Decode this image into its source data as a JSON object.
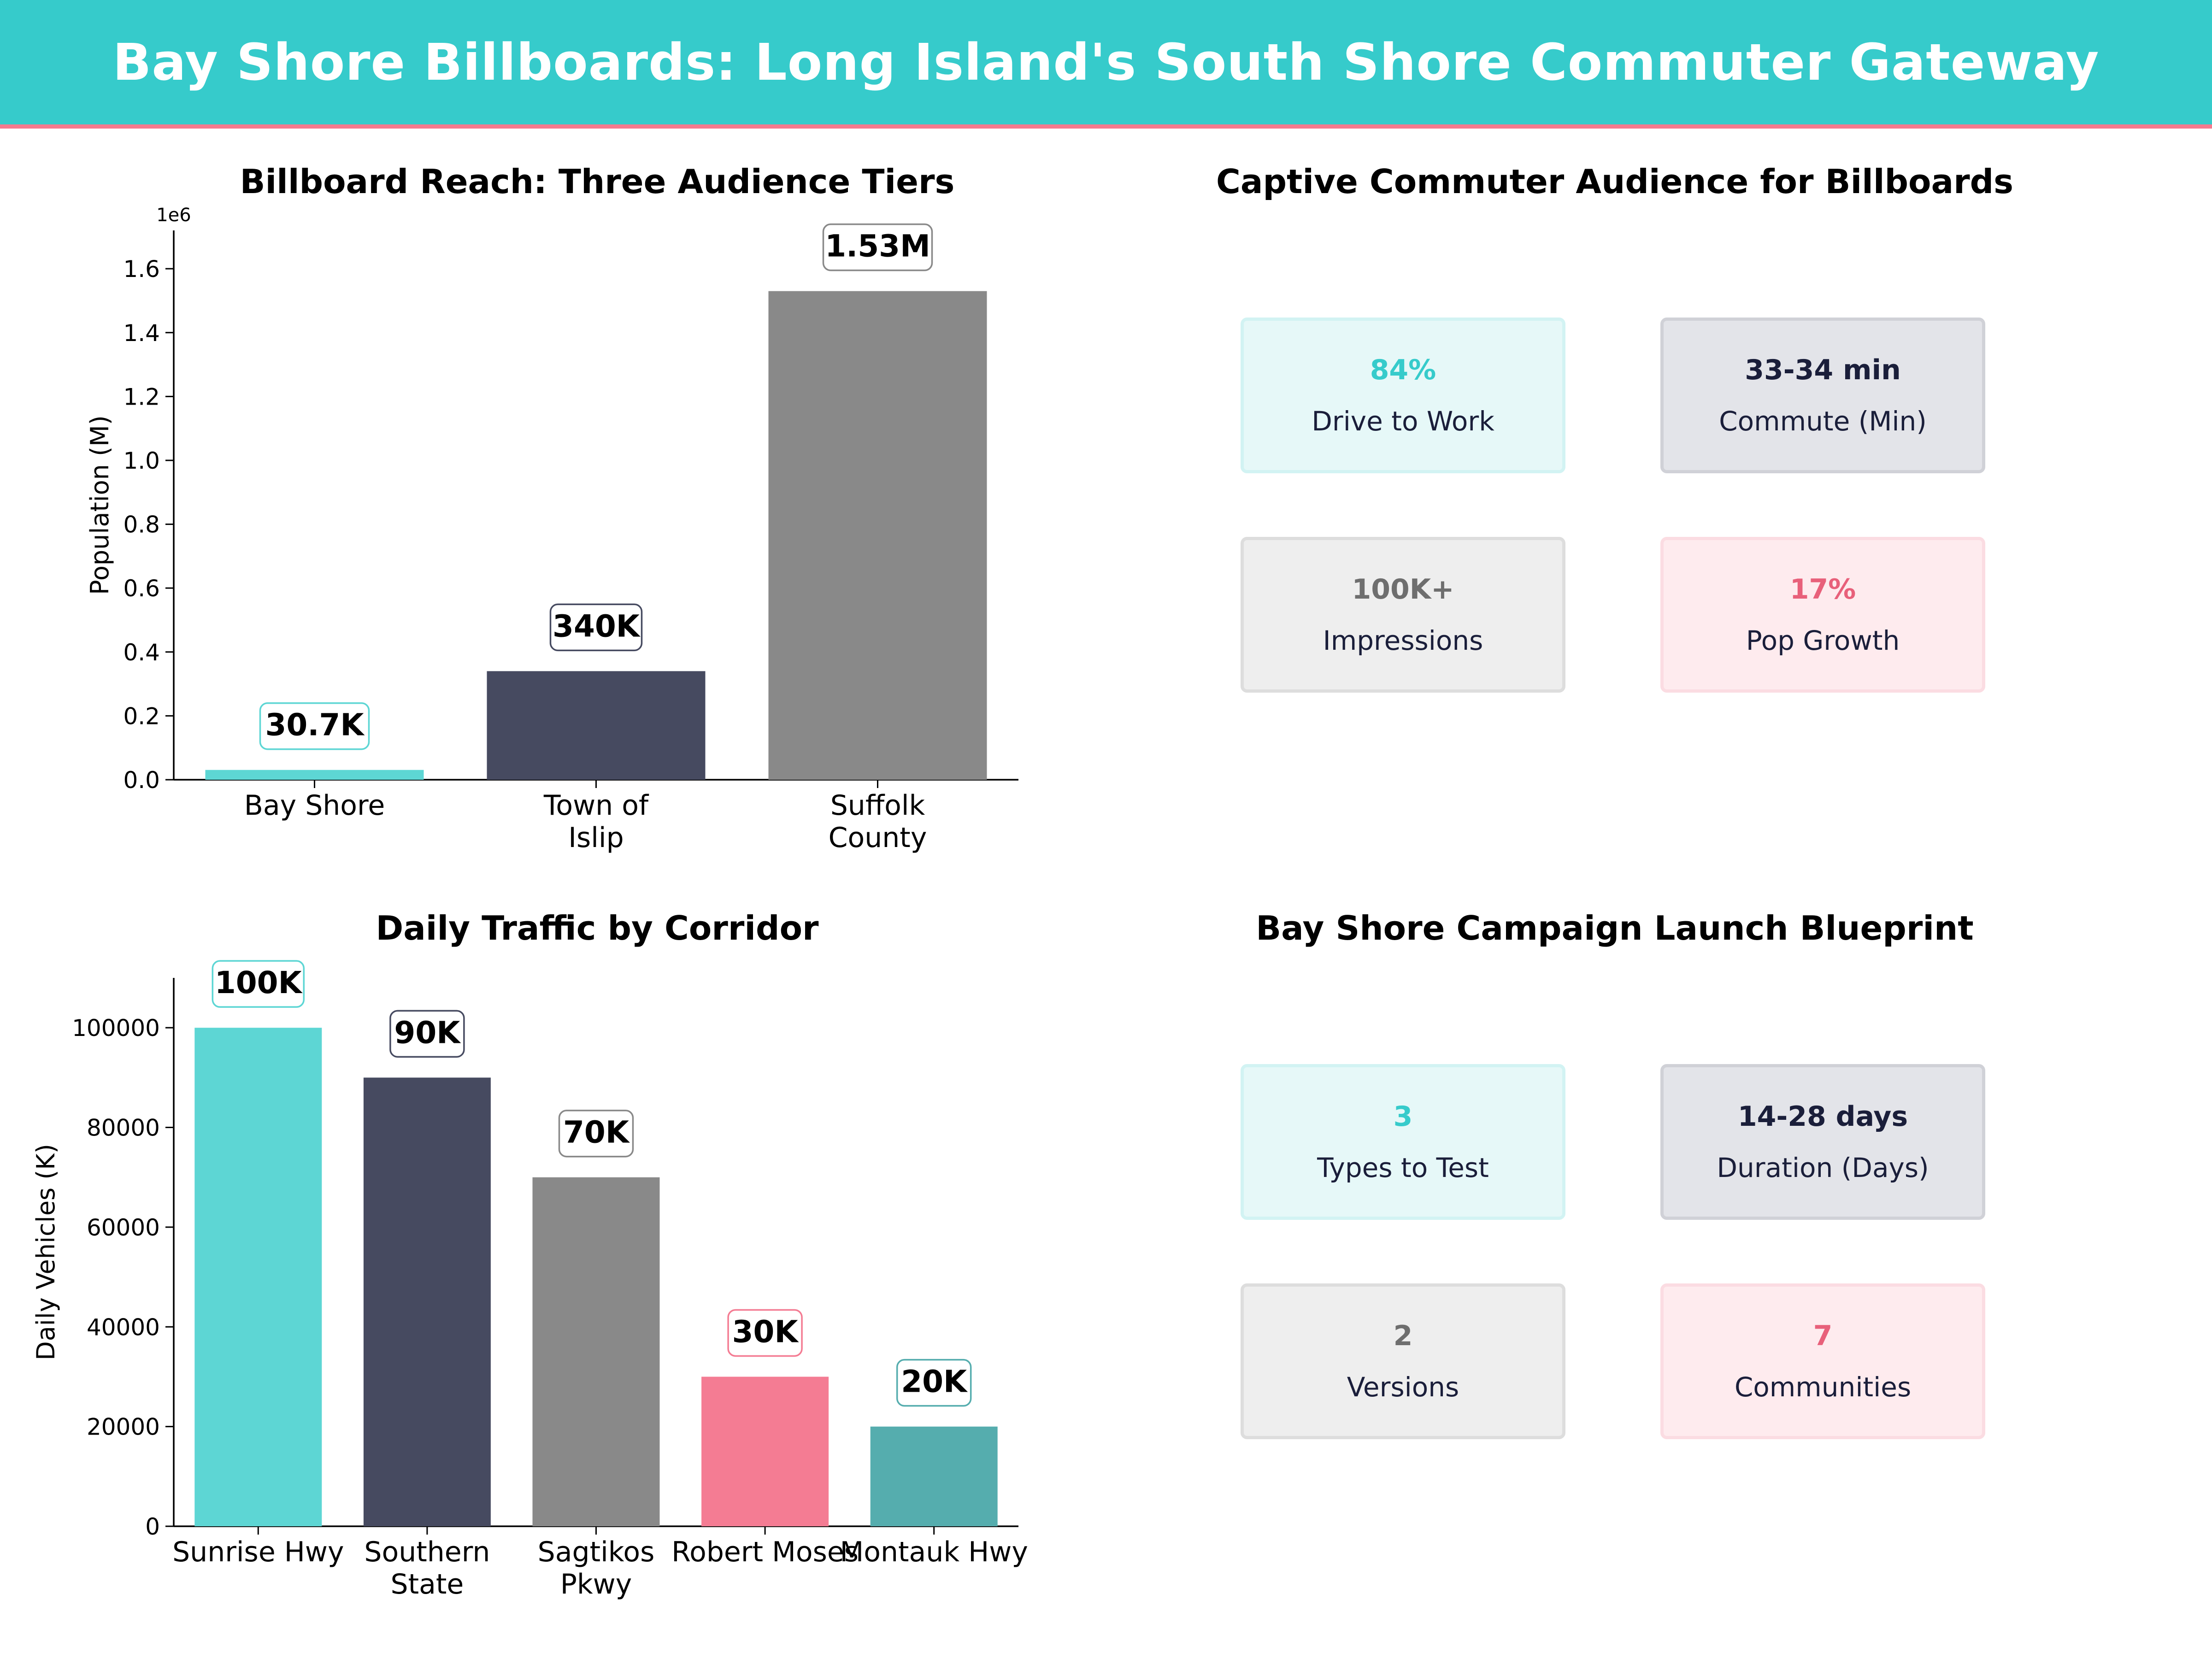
{
  "header": {
    "title": "Bay Shore Billboards: Long Island's South Shore Commuter Gateway"
  },
  "colors": {
    "banner": "#36cbcb",
    "banner_border": "#f47a8e",
    "teal": "#5dd6d4",
    "navy": "#464a60",
    "gray": "#898989",
    "pink": "#f47c93",
    "dark_teal": "#55adae"
  },
  "chart_data": [
    {
      "type": "bar",
      "title": "Billboard Reach: Three Audience Tiers",
      "ylabel": "Population (M)",
      "xlabel": "",
      "y_offset_label": "1e6",
      "categories": [
        "Bay Shore",
        "Town of\nIslip",
        "Suffolk\nCounty"
      ],
      "values": [
        30700,
        340000,
        1530000
      ],
      "data_labels": [
        "30.7K",
        "340K",
        "1.53M"
      ],
      "bar_colors": [
        "#5dd6d4",
        "#464a60",
        "#898989"
      ],
      "label_border_colors": [
        "#5dd6d4",
        "#464a60",
        "#898989"
      ],
      "ylim": [
        0,
        1720000
      ],
      "yticks": [
        0,
        200000,
        400000,
        600000,
        800000,
        1000000,
        1200000,
        1400000,
        1600000
      ],
      "ytick_labels": [
        "0.0",
        "0.2",
        "0.4",
        "0.6",
        "0.8",
        "1.0",
        "1.2",
        "1.4",
        "1.6"
      ],
      "grid": false,
      "legend": "none"
    },
    {
      "type": "bar",
      "title": "Daily Traffic by Corridor",
      "ylabel": "Daily Vehicles (K)",
      "xlabel": "",
      "categories": [
        "Sunrise Hwy",
        "Southern\nState",
        "Sagtikos\nPkwy",
        "Robert Moses",
        "Montauk Hwy"
      ],
      "values": [
        100000,
        90000,
        70000,
        30000,
        20000
      ],
      "data_labels": [
        "100K",
        "90K",
        "70K",
        "30K",
        "20K"
      ],
      "bar_colors": [
        "#5dd6d4",
        "#464a60",
        "#898989",
        "#f47c93",
        "#55adae"
      ],
      "label_border_colors": [
        "#5dd6d4",
        "#464a60",
        "#898989",
        "#f47c93",
        "#55adae"
      ],
      "ylim": [
        0,
        110000
      ],
      "yticks": [
        0,
        20000,
        40000,
        60000,
        80000,
        100000
      ],
      "ytick_labels": [
        "0",
        "20000",
        "40000",
        "60000",
        "80000",
        "100000"
      ],
      "grid": false,
      "legend": "none"
    }
  ],
  "audience_panel": {
    "title": "Captive Commuter Audience for Billboards",
    "cards": [
      {
        "value": "84%",
        "label": "Drive to Work",
        "value_color": "#36cbcb",
        "bg": "#e6f8f8",
        "border": "#d2f3f3"
      },
      {
        "value": "33-34 min",
        "label": "Commute (Min)",
        "value_color": "#1a1e3a",
        "bg": "#e3e4e9",
        "border": "#d0d1d7"
      },
      {
        "value": "100K+",
        "label": "Impressions",
        "value_color": "#6e6e6e",
        "bg": "#eeeeee",
        "border": "#dddddd"
      },
      {
        "value": "17%",
        "label": "Pop Growth",
        "value_color": "#e8607a",
        "bg": "#feebee",
        "border": "#fbdce2"
      }
    ]
  },
  "blueprint_panel": {
    "title": "Bay Shore Campaign Launch Blueprint",
    "cards": [
      {
        "value": "3",
        "label": "Types to Test",
        "value_color": "#36cbcb",
        "bg": "#e6f8f8",
        "border": "#d2f3f3"
      },
      {
        "value": "14-28 days",
        "label": "Duration (Days)",
        "value_color": "#1a1e3a",
        "bg": "#e3e4e9",
        "border": "#d0d1d7"
      },
      {
        "value": "2",
        "label": "Versions",
        "value_color": "#6e6e6e",
        "bg": "#eeeeee",
        "border": "#dddddd"
      },
      {
        "value": "7",
        "label": "Communities",
        "value_color": "#e8607a",
        "bg": "#feebee",
        "border": "#fbdce2"
      }
    ]
  }
}
